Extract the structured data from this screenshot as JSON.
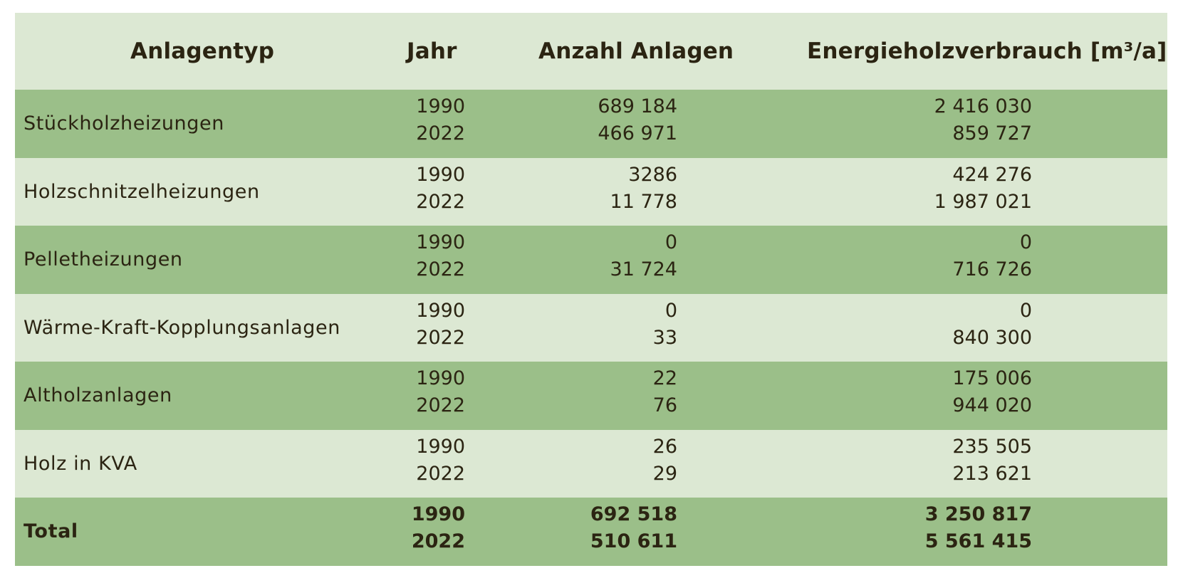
{
  "table": {
    "headers": {
      "type": "Anlagentyp",
      "year": "Jahr",
      "count": "Anzahl Anlagen",
      "energy": "Energieholzverbrauch [m³/a]"
    },
    "rows": [
      {
        "type": "Stückholzheizungen",
        "years": [
          "1990",
          "2022"
        ],
        "count": [
          "689 184",
          "466 971"
        ],
        "energy": [
          "2 416 030",
          "859 727"
        ]
      },
      {
        "type": "Holzschnitzelheizungen",
        "years": [
          "1990",
          "2022"
        ],
        "count": [
          "3286",
          "11 778"
        ],
        "energy": [
          "424 276",
          "1 987 021"
        ]
      },
      {
        "type": "Pelletheizungen",
        "years": [
          "1990",
          "2022"
        ],
        "count": [
          "0",
          "31 724"
        ],
        "energy": [
          "0",
          "716 726"
        ]
      },
      {
        "type": "Wärme-Kraft-Kopplungsanlagen",
        "years": [
          "1990",
          "2022"
        ],
        "count": [
          "0",
          "33"
        ],
        "energy": [
          "0",
          "840 300"
        ]
      },
      {
        "type": "Altholzanlagen",
        "years": [
          "1990",
          "2022"
        ],
        "count": [
          "22",
          "76"
        ],
        "energy": [
          "175 006",
          "944 020"
        ]
      },
      {
        "type": "Holz in KVA",
        "years": [
          "1990",
          "2022"
        ],
        "count": [
          "26",
          "29"
        ],
        "energy": [
          "235 505",
          "213 621"
        ]
      }
    ],
    "total": {
      "type": "Total",
      "years": [
        "1990",
        "2022"
      ],
      "count": [
        "692 518",
        "510 611"
      ],
      "energy": [
        "3 250 817",
        "5 561 415"
      ]
    }
  },
  "colors": {
    "header_bg": "#dce8d3",
    "row_dark": "#9bbf89",
    "row_light": "#dce8d3",
    "text": "#2b2412"
  }
}
